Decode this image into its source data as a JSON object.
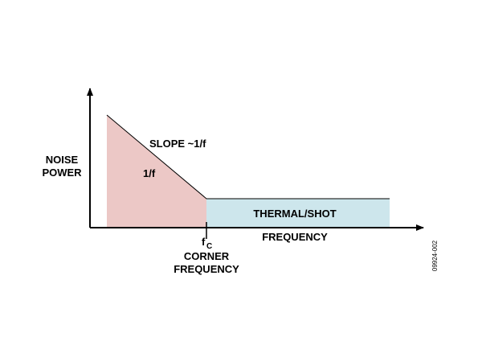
{
  "labels": {
    "y_axis": [
      "NOISE",
      "POWER"
    ],
    "slope": "SLOPE ~1/f",
    "region_1f": "1/f",
    "region_thermal": "THERMAL/SHOT",
    "x_axis": "FREQUENCY",
    "corner_symbol": "f",
    "corner_subscript": "C",
    "corner_label": [
      "CORNER",
      "FREQUENCY"
    ],
    "figure_id": "09924-002"
  }
}
